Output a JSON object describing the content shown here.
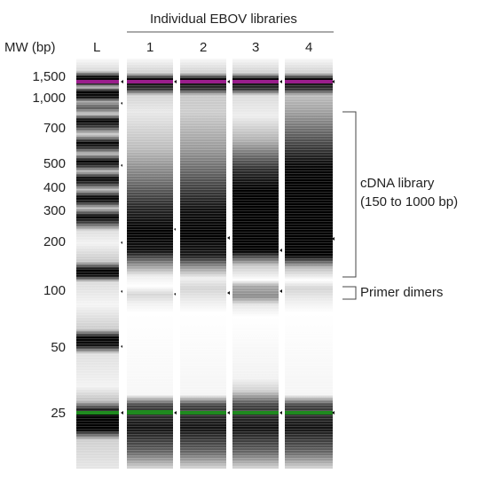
{
  "header": {
    "group_title": "Individual EBOV libraries",
    "mw_label": "MW (bp)"
  },
  "lanes": [
    {
      "id": "ladder",
      "label": "L"
    },
    {
      "id": "lane1",
      "label": "1"
    },
    {
      "id": "lane2",
      "label": "2"
    },
    {
      "id": "lane3",
      "label": "3"
    },
    {
      "id": "lane4",
      "label": "4"
    }
  ],
  "mw_markers": [
    {
      "label": "1,500",
      "bp": 1500
    },
    {
      "label": "1,000",
      "bp": 1000
    },
    {
      "label": "700",
      "bp": 700
    },
    {
      "label": "500",
      "bp": 500
    },
    {
      "label": "400",
      "bp": 400
    },
    {
      "label": "300",
      "bp": 300
    },
    {
      "label": "200",
      "bp": 200
    },
    {
      "label": "100",
      "bp": 100
    },
    {
      "label": "50",
      "bp": 50
    },
    {
      "label": "25",
      "bp": 25
    }
  ],
  "annotations": {
    "library_line1": "cDNA library",
    "library_line2": "(150  to 1000 bp)",
    "primer_dimers": "Primer dimers"
  },
  "colors": {
    "upper_marker": "#9a1e8c",
    "lower_marker": "#1f8a1f",
    "band": "#000000",
    "background": "#ffffff"
  }
}
